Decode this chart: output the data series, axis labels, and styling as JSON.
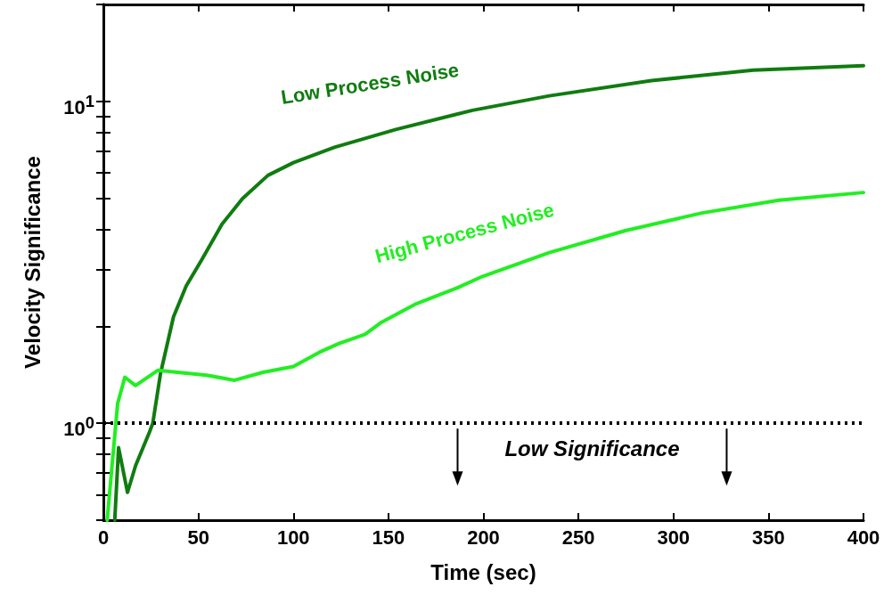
{
  "chart_data": {
    "type": "line",
    "xlabel": "Time (sec)",
    "ylabel": "Velocity Significance",
    "log": "y",
    "xlim": [
      0,
      400
    ],
    "xticks": [
      0,
      50,
      100,
      150,
      200,
      250,
      300,
      350,
      400
    ],
    "ylim": [
      0.5,
      20
    ],
    "yticks": [
      {
        "value": 0.5,
        "label": null
      },
      {
        "value": 0.6,
        "label": null
      },
      {
        "value": 0.7,
        "label": null
      },
      {
        "value": 0.8,
        "label": null
      },
      {
        "value": 0.9,
        "label": null
      },
      {
        "value": 1,
        "label": "10$^{0}$"
      },
      {
        "value": 2,
        "label": null
      },
      {
        "value": 3,
        "label": null
      },
      {
        "value": 4,
        "label": null
      },
      {
        "value": 5,
        "label": null
      },
      {
        "value": 6,
        "label": null
      },
      {
        "value": 7,
        "label": null
      },
      {
        "value": 8,
        "label": null
      },
      {
        "value": 9,
        "label": null
      },
      {
        "value": 10,
        "label": "10$^{1}$"
      },
      {
        "value": 20,
        "label": null
      }
    ],
    "grid": false,
    "legend": false,
    "marker": "none",
    "line_style": "solid",
    "series": [
      {
        "name": "Low Process Noise",
        "color": "#107c10",
        "x": [
          6,
          8,
          12.7,
          17,
          24,
          26,
          30.1,
          36.9,
          43.6,
          51.6,
          62.4,
          73.2,
          86.6,
          100,
          121.6,
          153.9,
          194.2,
          234.6,
          288.4,
          342,
          400
        ],
        "values": [
          0.5,
          0.84,
          0.61,
          0.74,
          0.93,
          1,
          1.43,
          2.14,
          2.67,
          3.21,
          4.15,
          4.99,
          5.89,
          6.45,
          7.2,
          8.18,
          9.38,
          10.4,
          11.6,
          12.5,
          12.9
        ]
      },
      {
        "name": "High Process Noise",
        "color": "#22ee22",
        "x": [
          2,
          7.5,
          11.3,
          16.9,
          28.6,
          54.3,
          69,
          84,
          100,
          113.5,
          124,
          137.7,
          145.8,
          164.6,
          186,
          199.6,
          234.6,
          275,
          315,
          355.6,
          400
        ],
        "values": [
          0.5,
          1.15,
          1.39,
          1.31,
          1.46,
          1.41,
          1.36,
          1.44,
          1.5,
          1.66,
          1.77,
          1.89,
          2.05,
          2.35,
          2.63,
          2.86,
          3.39,
          3.97,
          4.5,
          4.93,
          5.21
        ]
      }
    ],
    "ref_lines": [
      {
        "axis": "y",
        "value": 1,
        "color": "#000000",
        "line_style": "dotted"
      }
    ],
    "annotations": [
      "Low Significance"
    ]
  }
}
